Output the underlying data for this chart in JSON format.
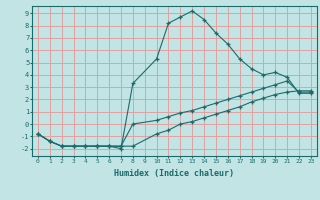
{
  "xlabel": "Humidex (Indice chaleur)",
  "background_color": "#c2e4e4",
  "grid_color": "#dfa0a0",
  "line_color": "#1a6b6b",
  "xlim": [
    -0.5,
    23.5
  ],
  "ylim": [
    -2.6,
    9.6
  ],
  "xticks": [
    0,
    1,
    2,
    3,
    4,
    5,
    6,
    7,
    8,
    9,
    10,
    11,
    12,
    13,
    14,
    15,
    16,
    17,
    18,
    19,
    20,
    21,
    22,
    23
  ],
  "yticks": [
    -2,
    -1,
    0,
    1,
    2,
    3,
    4,
    5,
    6,
    7,
    8,
    9
  ],
  "line1_x": [
    0,
    1,
    2,
    3,
    4,
    5,
    6,
    7,
    8,
    10,
    11,
    12,
    13,
    14,
    15,
    16,
    17,
    18,
    19,
    20,
    21,
    22,
    23
  ],
  "line1_y": [
    -0.8,
    -1.4,
    -1.8,
    -1.8,
    -1.8,
    -1.8,
    -1.8,
    -2.0,
    3.3,
    5.3,
    8.2,
    8.7,
    9.2,
    8.5,
    7.4,
    6.5,
    5.3,
    4.5,
    4.0,
    4.2,
    3.8,
    2.5,
    2.5
  ],
  "line2_x": [
    0,
    1,
    2,
    3,
    4,
    5,
    6,
    7,
    8,
    10,
    11,
    12,
    13,
    14,
    15,
    16,
    17,
    18,
    19,
    20,
    21,
    22,
    23
  ],
  "line2_y": [
    -0.8,
    -1.4,
    -1.8,
    -1.8,
    -1.8,
    -1.8,
    -1.8,
    -1.8,
    -1.8,
    -0.8,
    -0.5,
    0.0,
    0.2,
    0.5,
    0.8,
    1.1,
    1.4,
    1.8,
    2.1,
    2.4,
    2.6,
    2.7,
    2.7
  ],
  "line3_x": [
    0,
    1,
    2,
    3,
    4,
    5,
    6,
    7,
    8,
    10,
    11,
    12,
    13,
    14,
    15,
    16,
    17,
    18,
    19,
    20,
    21,
    22,
    23
  ],
  "line3_y": [
    -0.8,
    -1.4,
    -1.8,
    -1.8,
    -1.8,
    -1.8,
    -1.8,
    -1.8,
    0.0,
    0.3,
    0.6,
    0.9,
    1.1,
    1.4,
    1.7,
    2.0,
    2.3,
    2.6,
    2.9,
    3.2,
    3.5,
    2.6,
    2.6
  ]
}
